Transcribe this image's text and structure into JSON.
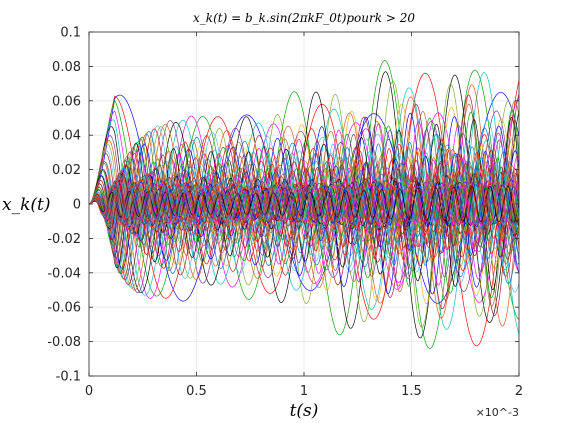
{
  "chart_data": {
    "type": "line",
    "title": "x_k(t) = b_k.sin(2πkF_0t)pourk > 20",
    "xlabel": "t(s)",
    "ylabel": "x_k(t)",
    "x_exponent_label": "×10^-3",
    "xlim": [
      0,
      0.002
    ],
    "ylim": [
      -0.1,
      0.1
    ],
    "x_ticks": [
      0,
      0.0005,
      0.001,
      0.0015,
      0.002
    ],
    "x_tick_labels": [
      "0",
      "0.5",
      "1",
      "1.5",
      "2"
    ],
    "y_ticks": [
      0.1,
      0.08,
      0.06,
      0.04,
      0.02,
      0,
      -0.02,
      -0.04,
      -0.06,
      -0.08,
      -0.1
    ],
    "y_tick_labels": [
      "0.1",
      "0.08",
      "0.06",
      "0.04",
      "0.02",
      "0",
      "-0.02",
      "-0.04",
      "-0.06",
      "-0.08",
      "-0.1"
    ],
    "grid": true,
    "legend": "none",
    "envelope_peak_amplitude": 0.06,
    "envelope_floor_amplitude": 0.013,
    "first_peak_time": 0.0001,
    "series_colors": [
      "#0000ff",
      "#ff0000",
      "#00a000",
      "#ff00ff",
      "#00bfbf",
      "#000000",
      "#7e2f8e",
      "#d95319",
      "#77ac30",
      "#4dbeee",
      "#a2142f",
      "#edb120",
      "#0072bd",
      "#996633"
    ]
  }
}
